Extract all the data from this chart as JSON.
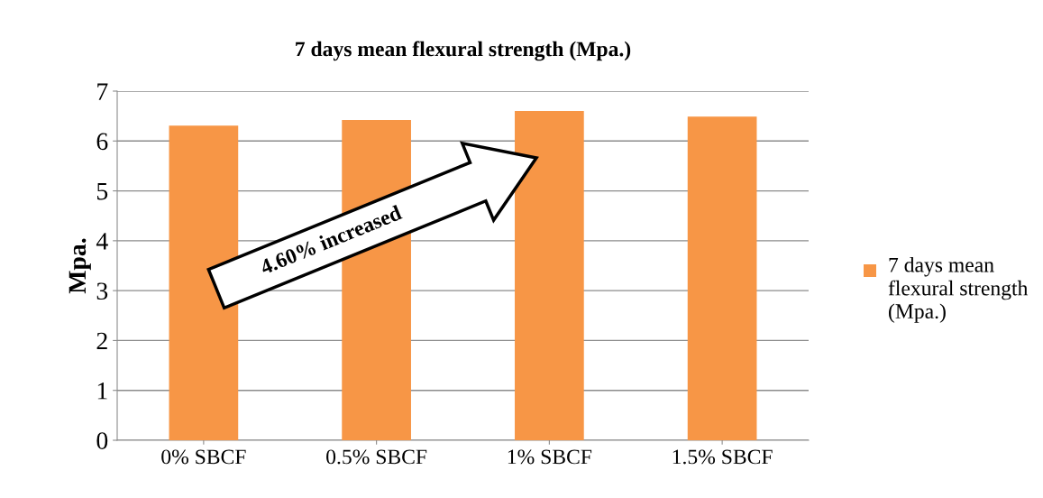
{
  "chart_data": {
    "type": "bar",
    "title": "7 days mean flexural strength (Mpa.)",
    "ylabel": "Mpa.",
    "categories": [
      "0% SBCF",
      "0.5% SBCF",
      "1% SBCF",
      "1.5% SBCF"
    ],
    "series": [
      {
        "name": "7 days mean flexural strength (Mpa.)",
        "color": "#f79646",
        "values": [
          6.31,
          6.42,
          6.6,
          6.49
        ]
      }
    ],
    "ylim": [
      0,
      7
    ],
    "yticks": [
      0,
      1,
      2,
      3,
      4,
      5,
      6,
      7
    ],
    "grid": "y",
    "legend": "right",
    "annotations": [
      "4.60% increased"
    ]
  }
}
